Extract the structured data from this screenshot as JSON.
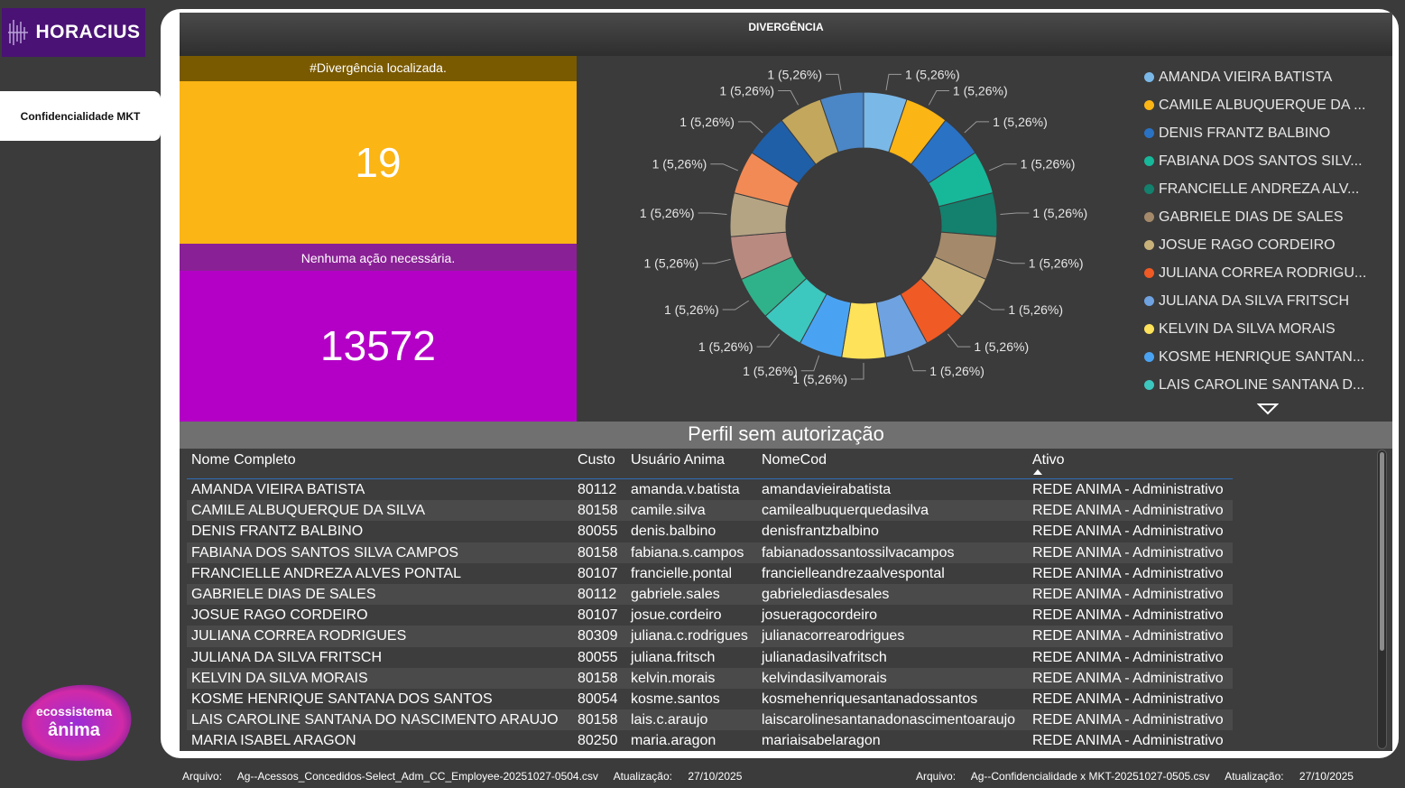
{
  "app": {
    "logo_text": "HORACIUS",
    "nav_tab": "Confidencialidade MKT",
    "eco_line1": "ecossistema",
    "eco_line2": "ânima"
  },
  "header": {
    "title": "DIVERGÊNCIA"
  },
  "kpi": {
    "divergence_label": "#Divergência localizada.",
    "divergence_value": "19",
    "no_action_label": "Nenhuma ação necessária.",
    "no_action_value": "13572"
  },
  "chart_data": {
    "type": "pie",
    "donut": true,
    "slice_label": "1 (5,26%)",
    "series": [
      {
        "name": "AMANDA VIEIRA BATISTA",
        "value": 1,
        "color": "#7ab8e8"
      },
      {
        "name": "CAMILE ALBUQUERQUE DA ...",
        "value": 1,
        "color": "#fbb514"
      },
      {
        "name": "DENIS FRANTZ BALBINO",
        "value": 1,
        "color": "#2a72c4"
      },
      {
        "name": "FABIANA DOS SANTOS SILV...",
        "value": 1,
        "color": "#17b79a"
      },
      {
        "name": "FRANCIELLE ANDREZA ALV...",
        "value": 1,
        "color": "#13816e"
      },
      {
        "name": "GABRIELE DIAS DE SALES",
        "value": 1,
        "color": "#a48a6a"
      },
      {
        "name": "JOSUE RAGO CORDEIRO",
        "value": 1,
        "color": "#c9b27a"
      },
      {
        "name": "JULIANA CORREA RODRIGU...",
        "value": 1,
        "color": "#f05a24"
      },
      {
        "name": "JULIANA DA SILVA FRITSCH",
        "value": 1,
        "color": "#6fa2e0"
      },
      {
        "name": "KELVIN DA SILVA MORAIS",
        "value": 1,
        "color": "#fde25a"
      },
      {
        "name": "KOSME HENRIQUE SANTAN...",
        "value": 1,
        "color": "#4aa3f2"
      },
      {
        "name": "LAIS CAROLINE SANTANA D...",
        "value": 1,
        "color": "#3cc7bf"
      },
      {
        "name": "",
        "value": 1,
        "color": "#2fb28a"
      },
      {
        "name": "",
        "value": 1,
        "color": "#b98a80"
      },
      {
        "name": "",
        "value": 1,
        "color": "#b5a484"
      },
      {
        "name": "",
        "value": 1,
        "color": "#f28a55"
      },
      {
        "name": "",
        "value": 1,
        "color": "#1f5fa8"
      },
      {
        "name": "",
        "value": 1,
        "color": "#c2a75d"
      },
      {
        "name": "",
        "value": 1,
        "color": "#4b86c6"
      }
    ],
    "legend_placement": "right"
  },
  "table": {
    "title": "Perfil sem autorização",
    "columns": [
      "Nome Completo",
      "Custo",
      "Usuário Anima",
      "NomeCod",
      "Ativo"
    ],
    "rows": [
      [
        "AMANDA VIEIRA BATISTA",
        "80112",
        "amanda.v.batista",
        "amandavieirabatista",
        "REDE ANIMA - Administrativo"
      ],
      [
        "CAMILE ALBUQUERQUE DA SILVA",
        "80158",
        "camile.silva",
        "camilealbuquerquedasilva",
        "REDE ANIMA - Administrativo"
      ],
      [
        "DENIS FRANTZ BALBINO",
        "80055",
        "denis.balbino",
        "denisfrantzbalbino",
        "REDE ANIMA - Administrativo"
      ],
      [
        "FABIANA DOS SANTOS SILVA CAMPOS",
        "80158",
        "fabiana.s.campos",
        "fabianadossantossilvacampos",
        "REDE ANIMA - Administrativo"
      ],
      [
        "FRANCIELLE ANDREZA ALVES PONTAL",
        "80107",
        "francielle.pontal",
        "francielleandrezaalvespontal",
        "REDE ANIMA - Administrativo"
      ],
      [
        "GABRIELE DIAS DE SALES",
        "80112",
        "gabriele.sales",
        "gabrielediasdesales",
        "REDE ANIMA - Administrativo"
      ],
      [
        "JOSUE RAGO CORDEIRO",
        "80107",
        "josue.cordeiro",
        "josueragocordeiro",
        "REDE ANIMA - Administrativo"
      ],
      [
        "JULIANA CORREA RODRIGUES",
        "80309",
        "juliana.c.rodrigues",
        "julianacorrearodrigues",
        "REDE ANIMA - Administrativo"
      ],
      [
        "JULIANA DA SILVA FRITSCH",
        "80055",
        "juliana.fritsch",
        "julianadasilvafritsch",
        "REDE ANIMA - Administrativo"
      ],
      [
        "KELVIN DA SILVA MORAIS",
        "80158",
        "kelvin.morais",
        "kelvindasilvamorais",
        "REDE ANIMA - Administrativo"
      ],
      [
        "KOSME HENRIQUE SANTANA DOS SANTOS",
        "80054",
        "kosme.santos",
        "kosmehenriquesantanadossantos",
        "REDE ANIMA - Administrativo"
      ],
      [
        "LAIS CAROLINE SANTANA DO NASCIMENTO ARAUJO",
        "80158",
        "lais.c.araujo",
        "laiscarolinesantanadonascimentoaraujo",
        "REDE ANIMA - Administrativo"
      ],
      [
        "MARIA ISABEL ARAGON",
        "80250",
        "maria.aragon",
        "mariaisabelaragon",
        "REDE ANIMA - Administrativo"
      ]
    ]
  },
  "footer": {
    "left_file_label": "Arquivo:",
    "left_file": "Ag--Acessos_Concedidos-Select_Adm_CC_Employee-20251027-0504.csv",
    "left_update_label": "Atualização:",
    "left_update": "27/10/2025",
    "right_file_label": "Arquivo:",
    "right_file": "Ag--Confidencialidade x MKT-20251027-0505.csv",
    "right_update_label": "Atualização:",
    "right_update": "27/10/2025"
  }
}
